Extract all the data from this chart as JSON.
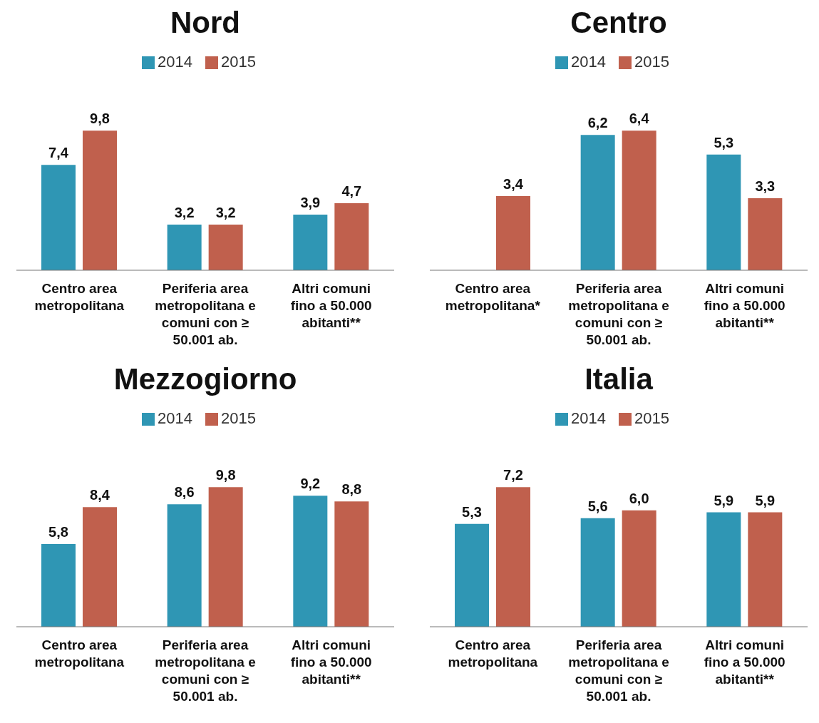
{
  "chart_data": [
    {
      "type": "bar",
      "title": "Nord",
      "categories": [
        "Centro area metropolitana",
        "Periferia area metropolitana e comuni  con ≥ 50.001 ab.",
        "Altri comuni fino a 50.000 abitanti**"
      ],
      "series": [
        {
          "name": "2014",
          "color": "#2f96b4",
          "values": [
            7.4,
            3.2,
            3.9
          ],
          "value_labels": [
            "7,4",
            "3,2",
            "3,9"
          ]
        },
        {
          "name": "2015",
          "color": "#c0604d",
          "values": [
            9.8,
            3.2,
            4.7
          ],
          "value_labels": [
            "9,8",
            "3,2",
            "4,7"
          ]
        }
      ],
      "legend": "top",
      "tick_labels": "x"
    },
    {
      "type": "bar",
      "title": "Centro",
      "categories": [
        "Centro area metropolitana*",
        "Periferia area metropolitana e comuni  con ≥ 50.001 ab.",
        "Altri comuni fino a 50.000 abitanti**"
      ],
      "series": [
        {
          "name": "2014",
          "color": "#2f96b4",
          "values": [
            null,
            6.2,
            5.3
          ],
          "value_labels": [
            null,
            "6,2",
            "5,3"
          ]
        },
        {
          "name": "2015",
          "color": "#c0604d",
          "values": [
            3.4,
            6.4,
            3.3
          ],
          "value_labels": [
            "3,4",
            "6,4",
            "3,3"
          ]
        }
      ],
      "legend": "top",
      "tick_labels": "x"
    },
    {
      "type": "bar",
      "title": "Mezzogiorno",
      "categories": [
        "Centro area metropolitana",
        "Periferia area metropolitana e comuni  con ≥ 50.001 ab.",
        "Altri comuni fino a 50.000 abitanti**"
      ],
      "series": [
        {
          "name": "2014",
          "color": "#2f96b4",
          "values": [
            5.8,
            8.6,
            9.2
          ],
          "value_labels": [
            "5,8",
            "8,6",
            "9,2"
          ]
        },
        {
          "name": "2015",
          "color": "#c0604d",
          "values": [
            8.4,
            9.8,
            8.8
          ],
          "value_labels": [
            "8,4",
            "9,8",
            "8,8"
          ]
        }
      ],
      "legend": "top",
      "tick_labels": "x"
    },
    {
      "type": "bar",
      "title": "Italia",
      "categories": [
        "Centro area metropolitana",
        "Periferia area metropolitana e comuni  con ≥ 50.001 ab.",
        "Altri comuni fino a 50.000 abitanti**"
      ],
      "series": [
        {
          "name": "2014",
          "color": "#2f96b4",
          "values": [
            5.3,
            5.6,
            5.9
          ],
          "value_labels": [
            "5,3",
            "5,6",
            "5,9"
          ]
        },
        {
          "name": "2015",
          "color": "#c0604d",
          "values": [
            7.2,
            6.0,
            5.9
          ],
          "value_labels": [
            "7,2",
            "6,0",
            "5,9"
          ]
        }
      ],
      "legend": "top",
      "tick_labels": "x"
    }
  ]
}
